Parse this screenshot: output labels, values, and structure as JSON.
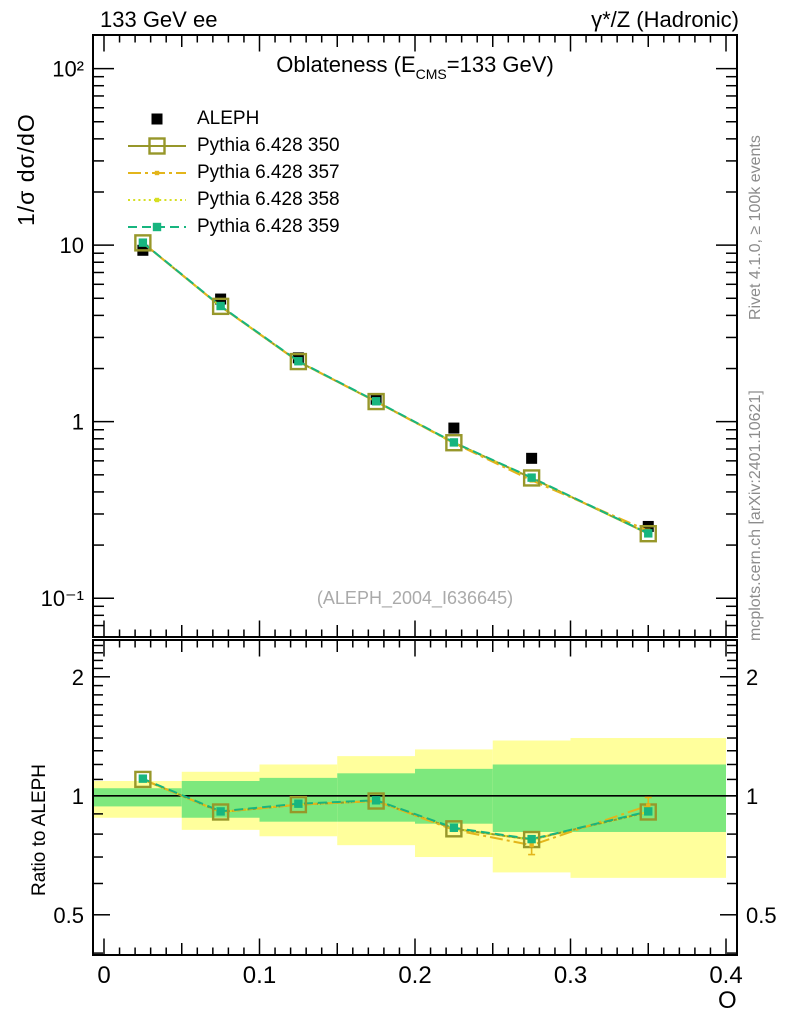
{
  "header": {
    "left": "133 GeV ee",
    "right": "γ*/Z (Hadronic)"
  },
  "main_panel": {
    "title_prefix": "Oblateness (E",
    "title_sub": "CMS",
    "title_suffix": "=133 GeV)",
    "ylabel": "1/σ dσ/dO",
    "yticks": [
      {
        "v": 100,
        "label": "10²"
      },
      {
        "v": 10,
        "label": "10"
      },
      {
        "v": 1,
        "label": "1"
      },
      {
        "v": 0.1,
        "label": "10⁻¹"
      }
    ]
  },
  "ratio_panel": {
    "ylabel": "Ratio to ALEPH",
    "yticks": [
      {
        "v": 2,
        "label": "2"
      },
      {
        "v": 1,
        "label": "1"
      },
      {
        "v": 0.5,
        "label": "0.5"
      }
    ]
  },
  "x_axis": {
    "label": "O",
    "tick_values": [
      0,
      0.1,
      0.2,
      0.3,
      0.4
    ],
    "tick_labels": [
      "0",
      "0.1",
      "0.2",
      "0.3",
      "0.4"
    ]
  },
  "watermark": "(ALEPH_2004_I636645)",
  "side_notes": {
    "top_right": "Rivet 4.1.0, ≥ 100k events",
    "bottom_right": "mcplots.cern.ch [arXiv:2401.10621]"
  },
  "colors": {
    "band_yellow": "#ffff9c",
    "band_green": "#7de87d",
    "frame": "#000000",
    "watermark": "#aaaaaa",
    "side_note": "#8c8c8c"
  },
  "legend": [
    {
      "label": "ALEPH",
      "color": "#000000",
      "dash": "none",
      "marker": "filled-square-black"
    },
    {
      "label": "Pythia 6.428 350",
      "color": "#97972a",
      "dash": "solid",
      "marker": "open-square"
    },
    {
      "label": "Pythia 6.428 357",
      "color": "#e3b51b",
      "dash": "dashdot",
      "marker": "dot"
    },
    {
      "label": "Pythia 6.428 358",
      "color": "#d6df23",
      "dash": "dotted",
      "marker": "dot"
    },
    {
      "label": "Pythia 6.428 359",
      "color": "#17b57f",
      "dash": "dashed",
      "marker": "filled-square"
    }
  ],
  "chart_data": {
    "type": "line",
    "title": "Oblateness (E_CMS=133 GeV)",
    "xlabel": "O",
    "ylabel": "1/σ dσ/dO",
    "ratio_ylabel": "Ratio to ALEPH",
    "log_y": true,
    "grid": false,
    "legend_position": "top-left",
    "xlim": [
      -0.00707,
      0.40707
    ],
    "ylim_main": [
      0.0603,
      155
    ],
    "ylim_ratio": [
      0.3956,
      2.478
    ],
    "x": [
      0.025,
      0.075,
      0.125,
      0.175,
      0.225,
      0.275,
      0.35
    ],
    "bin_edges": [
      0,
      0.05,
      0.1,
      0.15,
      0.2,
      0.25,
      0.3,
      0.4
    ],
    "reference": {
      "name": "ALEPH",
      "color": "#000000",
      "marker": "filled-square-black",
      "values": [
        9.35,
        4.95,
        2.3,
        1.34,
        0.92,
        0.62,
        0.255
      ],
      "yerr_frac": 0.05
    },
    "series": [
      {
        "name": "Pythia 6.428 350",
        "color": "#97972a",
        "dash": "solid",
        "marker": "open-square",
        "values": [
          10.3,
          4.5,
          2.19,
          1.3,
          0.76,
          0.48,
          0.232
        ],
        "ratio": [
          1.1,
          0.91,
          0.95,
          0.97,
          0.825,
          0.775,
          0.91
        ]
      },
      {
        "name": "Pythia 6.428 357",
        "color": "#e3b51b",
        "dash": "dashdot",
        "marker": "dot",
        "values": [
          10.3,
          4.5,
          2.19,
          1.3,
          0.755,
          0.465,
          0.241
        ],
        "ratio": [
          1.1,
          0.91,
          0.95,
          0.97,
          0.82,
          0.75,
          0.945
        ],
        "ratio_err": [
          0,
          0,
          0,
          0,
          0,
          0.04,
          0.045
        ]
      },
      {
        "name": "Pythia 6.428 358",
        "color": "#d6df23",
        "dash": "dotted",
        "marker": "dot",
        "values": [
          10.3,
          4.5,
          2.19,
          1.3,
          0.76,
          0.48,
          0.232
        ],
        "ratio": [
          1.1,
          0.91,
          0.95,
          0.97,
          0.825,
          0.775,
          0.91
        ]
      },
      {
        "name": "Pythia 6.428 359",
        "color": "#17b57f",
        "dash": "dashed",
        "marker": "filled-square",
        "values": [
          10.33,
          4.52,
          2.2,
          1.305,
          0.763,
          0.482,
          0.233
        ],
        "ratio": [
          1.105,
          0.913,
          0.955,
          0.974,
          0.83,
          0.777,
          0.913
        ]
      }
    ],
    "ratio_bands": {
      "bin_edges": [
        0,
        0.05,
        0.1,
        0.15,
        0.2,
        0.25,
        0.3,
        0.4
      ],
      "yellow": {
        "color": "#ffff9c",
        "lo": [
          0.88,
          0.82,
          0.79,
          0.75,
          0.7,
          0.64,
          0.62
        ],
        "hi": [
          1.09,
          1.15,
          1.2,
          1.26,
          1.31,
          1.38,
          1.4
        ]
      },
      "green": {
        "color": "#7de87d",
        "lo": [
          0.94,
          0.88,
          0.86,
          0.86,
          0.85,
          0.81,
          0.81
        ],
        "hi": [
          1.045,
          1.09,
          1.11,
          1.14,
          1.17,
          1.2,
          1.2
        ]
      }
    }
  }
}
